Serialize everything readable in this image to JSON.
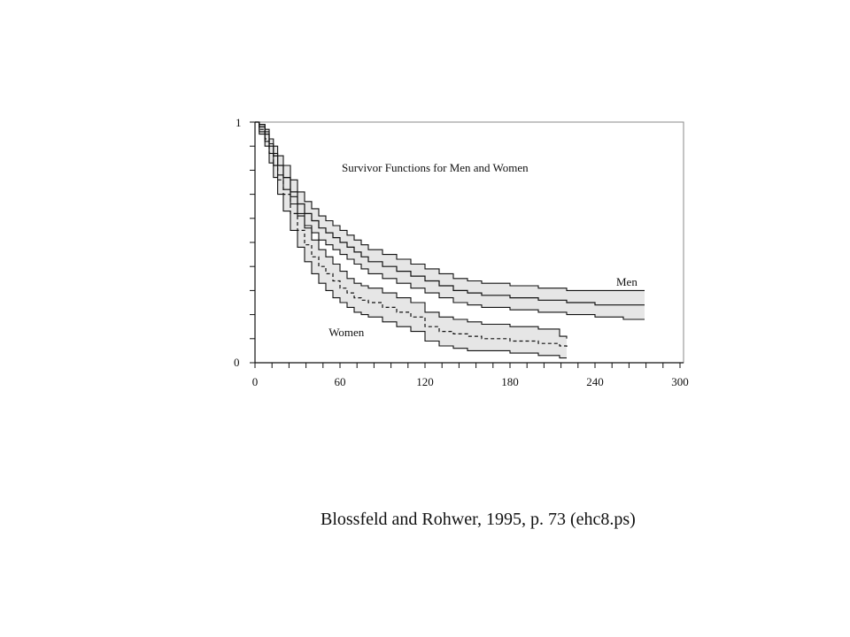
{
  "chart_data": {
    "type": "line",
    "title": "Survivor Functions for Men and Women",
    "xlabel": "",
    "ylabel": "",
    "xlim": [
      0,
      300
    ],
    "ylim": [
      0,
      1
    ],
    "x_ticks": [
      "0",
      "60",
      "120",
      "180",
      "240",
      "300"
    ],
    "y_tick_labels": [
      "1",
      "0"
    ],
    "grid": false,
    "colors": {
      "band_fill": "#e6e6e6",
      "line": "#111111"
    },
    "series": [
      {
        "name": "Men",
        "style": "solid",
        "x": [
          0,
          3,
          7,
          10,
          13,
          16,
          20,
          25,
          30,
          35,
          40,
          45,
          50,
          55,
          60,
          65,
          70,
          75,
          80,
          90,
          100,
          110,
          120,
          130,
          140,
          150,
          160,
          180,
          200,
          220,
          240,
          260,
          275
        ],
        "values": [
          1.0,
          0.98,
          0.95,
          0.9,
          0.86,
          0.82,
          0.77,
          0.71,
          0.66,
          0.62,
          0.59,
          0.56,
          0.54,
          0.52,
          0.5,
          0.48,
          0.46,
          0.44,
          0.42,
          0.4,
          0.38,
          0.36,
          0.34,
          0.32,
          0.3,
          0.29,
          0.28,
          0.27,
          0.26,
          0.25,
          0.24,
          0.24,
          0.24
        ],
        "lower": [
          1.0,
          0.96,
          0.92,
          0.87,
          0.82,
          0.78,
          0.72,
          0.66,
          0.61,
          0.57,
          0.54,
          0.51,
          0.49,
          0.47,
          0.45,
          0.43,
          0.41,
          0.39,
          0.37,
          0.35,
          0.33,
          0.31,
          0.29,
          0.27,
          0.25,
          0.24,
          0.23,
          0.22,
          0.21,
          0.2,
          0.19,
          0.18,
          0.18
        ],
        "upper": [
          1.0,
          0.99,
          0.97,
          0.93,
          0.9,
          0.86,
          0.82,
          0.76,
          0.71,
          0.67,
          0.64,
          0.61,
          0.59,
          0.57,
          0.55,
          0.53,
          0.51,
          0.49,
          0.47,
          0.45,
          0.43,
          0.41,
          0.39,
          0.37,
          0.35,
          0.34,
          0.33,
          0.32,
          0.31,
          0.3,
          0.3,
          0.3,
          0.3
        ]
      },
      {
        "name": "Women",
        "style": "dashed",
        "x": [
          0,
          3,
          7,
          10,
          13,
          16,
          20,
          25,
          30,
          35,
          40,
          45,
          50,
          55,
          60,
          65,
          70,
          75,
          80,
          90,
          100,
          110,
          120,
          130,
          140,
          150,
          160,
          180,
          200,
          215,
          220
        ],
        "values": [
          1.0,
          0.97,
          0.93,
          0.87,
          0.82,
          0.76,
          0.7,
          0.62,
          0.55,
          0.49,
          0.44,
          0.4,
          0.37,
          0.34,
          0.31,
          0.29,
          0.27,
          0.26,
          0.25,
          0.23,
          0.21,
          0.19,
          0.15,
          0.13,
          0.12,
          0.11,
          0.1,
          0.09,
          0.08,
          0.07,
          0.06
        ],
        "lower": [
          1.0,
          0.95,
          0.9,
          0.83,
          0.77,
          0.7,
          0.63,
          0.55,
          0.48,
          0.42,
          0.37,
          0.33,
          0.3,
          0.27,
          0.25,
          0.23,
          0.21,
          0.2,
          0.19,
          0.17,
          0.15,
          0.13,
          0.09,
          0.07,
          0.06,
          0.05,
          0.05,
          0.04,
          0.03,
          0.02,
          0.02
        ],
        "upper": [
          1.0,
          0.99,
          0.96,
          0.91,
          0.87,
          0.82,
          0.77,
          0.69,
          0.62,
          0.56,
          0.51,
          0.47,
          0.44,
          0.41,
          0.38,
          0.35,
          0.33,
          0.32,
          0.31,
          0.29,
          0.27,
          0.25,
          0.21,
          0.19,
          0.18,
          0.17,
          0.16,
          0.15,
          0.14,
          0.11,
          0.1
        ]
      }
    ],
    "annotations": [
      {
        "text": "Men",
        "x": 255,
        "y": 0.32
      },
      {
        "text": "Women",
        "x": 52,
        "y": 0.11
      }
    ]
  },
  "caption": "Blossfeld and Rohwer, 1995, p. 73 (ehc8.ps)"
}
